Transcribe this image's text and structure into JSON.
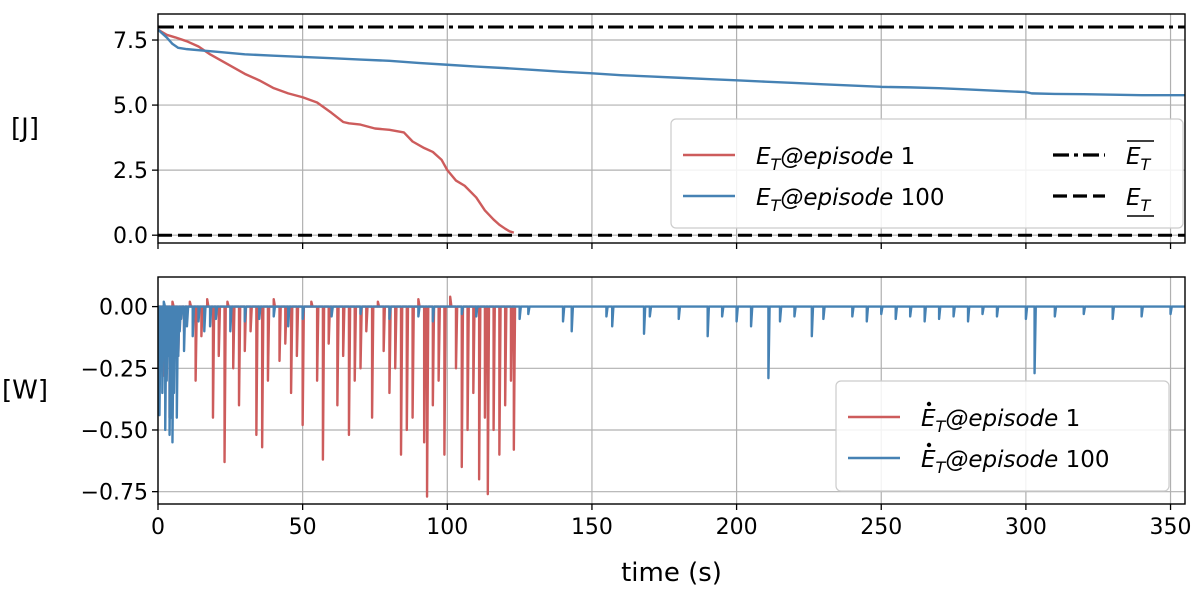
{
  "chart_data": [
    {
      "type": "line",
      "ylabel": "[J]",
      "xlim": [
        0,
        355
      ],
      "ylim": [
        -0.3,
        8.5
      ],
      "x_ticks": [
        0,
        50,
        100,
        150,
        200,
        250,
        300,
        350
      ],
      "y_ticks": [
        0.0,
        2.5,
        5.0,
        7.5
      ],
      "y_tick_labels": [
        "0.0",
        "2.5",
        "5.0",
        "7.5"
      ],
      "grid": true,
      "legend_position": "lower-right",
      "series": [
        {
          "name": "E_T@episode 1",
          "style": "solid",
          "color": "#cd5c5c",
          "x": [
            0,
            3,
            6,
            10,
            14,
            18,
            22,
            26,
            30,
            35,
            40,
            45,
            50,
            55,
            60,
            64,
            66,
            70,
            75,
            80,
            85,
            88,
            92,
            95,
            98,
            100,
            103,
            106,
            110,
            113,
            116,
            118,
            120,
            121.5,
            123
          ],
          "y": [
            7.9,
            7.7,
            7.6,
            7.45,
            7.25,
            6.95,
            6.7,
            6.45,
            6.2,
            5.95,
            5.65,
            5.45,
            5.3,
            5.1,
            4.7,
            4.35,
            4.3,
            4.25,
            4.1,
            4.05,
            3.95,
            3.6,
            3.35,
            3.2,
            2.9,
            2.5,
            2.1,
            1.9,
            1.45,
            0.95,
            0.6,
            0.4,
            0.25,
            0.15,
            0.1
          ]
        },
        {
          "name": "E_T@episode 100",
          "style": "solid",
          "color": "#4682b4",
          "x": [
            0,
            3,
            5,
            7,
            10,
            15,
            20,
            30,
            40,
            50,
            60,
            70,
            80,
            90,
            100,
            110,
            120,
            130,
            140,
            150,
            160,
            170,
            180,
            190,
            200,
            210,
            220,
            230,
            240,
            250,
            260,
            270,
            280,
            290,
            300,
            302,
            310,
            320,
            330,
            340,
            355
          ],
          "y": [
            7.9,
            7.6,
            7.35,
            7.2,
            7.15,
            7.1,
            7.05,
            6.95,
            6.9,
            6.85,
            6.8,
            6.75,
            6.7,
            6.62,
            6.55,
            6.48,
            6.42,
            6.35,
            6.28,
            6.22,
            6.15,
            6.1,
            6.05,
            6.0,
            5.95,
            5.9,
            5.85,
            5.8,
            5.75,
            5.7,
            5.68,
            5.65,
            5.6,
            5.55,
            5.5,
            5.45,
            5.43,
            5.42,
            5.4,
            5.38,
            5.38
          ]
        },
        {
          "name": "upper bound (overline E_T)",
          "style": "dashdot",
          "color": "#000000",
          "x": [
            0,
            355
          ],
          "y": [
            8.0,
            8.0
          ]
        },
        {
          "name": "lower bound (underline E_T)",
          "style": "dashed",
          "color": "#000000",
          "x": [
            0,
            355
          ],
          "y": [
            0.0,
            0.0
          ]
        }
      ],
      "legend_entries": [
        {
          "base": "E",
          "sub": "T",
          "italic_text": "@episode",
          "plain_text": " 1",
          "style": "solid",
          "color": "#cd5c5c"
        },
        {
          "base": "E",
          "sub": "T",
          "italic_text": "@episode",
          "plain_text": " 100",
          "style": "solid",
          "color": "#4682b4"
        },
        {
          "base": "E",
          "sub": "T",
          "italic_text": "",
          "plain_text": "",
          "style": "dashdot",
          "color": "#000000",
          "bar": "over"
        },
        {
          "base": "E",
          "sub": "T",
          "italic_text": "",
          "plain_text": "",
          "style": "dashed",
          "color": "#000000",
          "bar": "under"
        }
      ]
    },
    {
      "type": "line",
      "ylabel": "[W]",
      "xlabel": "time (s)",
      "xlim": [
        0,
        355
      ],
      "ylim": [
        -0.8,
        0.12
      ],
      "x_ticks": [
        0,
        50,
        100,
        150,
        200,
        250,
        300,
        350
      ],
      "x_tick_labels": [
        "0",
        "50",
        "100",
        "150",
        "200",
        "250",
        "300",
        "350"
      ],
      "y_ticks": [
        0.0,
        -0.25,
        -0.5,
        -0.75
      ],
      "y_tick_labels": [
        "0.00",
        "−0.25",
        "−0.50",
        "−0.75"
      ],
      "grid": true,
      "legend_position": "lower-right",
      "series": [
        {
          "name": "Edot_T@episode 1",
          "style": "solid",
          "color": "#cd5c5c",
          "spikes_x": [
            2,
            4,
            5,
            7,
            9,
            11,
            13,
            15,
            17,
            19,
            21,
            23,
            24,
            26,
            28,
            30,
            32,
            34,
            36,
            38,
            40,
            42,
            44,
            46,
            48,
            50,
            53,
            55,
            57,
            59,
            62,
            64,
            66,
            68,
            70,
            72,
            74,
            76,
            78,
            80,
            82,
            84,
            86,
            88,
            90,
            92,
            93,
            95,
            97,
            99,
            101,
            103,
            105,
            107,
            109,
            111,
            113,
            114,
            116,
            118,
            120,
            122,
            123
          ],
          "spikes_y": [
            -0.28,
            -0.45,
            0.02,
            -0.2,
            -0.1,
            0.02,
            -0.3,
            -0.12,
            0.03,
            -0.45,
            -0.2,
            -0.63,
            0.02,
            -0.25,
            -0.4,
            -0.18,
            -0.1,
            -0.52,
            -0.57,
            -0.3,
            0.03,
            -0.22,
            -0.15,
            -0.35,
            -0.2,
            -0.48,
            0.02,
            -0.3,
            -0.62,
            -0.15,
            -0.4,
            -0.2,
            -0.52,
            -0.3,
            -0.25,
            -0.1,
            -0.45,
            0.02,
            -0.18,
            -0.35,
            -0.25,
            -0.6,
            -0.5,
            -0.45,
            0.03,
            -0.55,
            -0.77,
            -0.4,
            -0.3,
            -0.6,
            0.04,
            -0.25,
            -0.65,
            -0.5,
            -0.35,
            -0.7,
            -0.45,
            -0.76,
            -0.5,
            -0.6,
            -0.4,
            -0.3,
            -0.58
          ]
        },
        {
          "name": "Edot_T@episode 100",
          "style": "solid",
          "color": "#4682b4",
          "spikes_x": [
            0.5,
            1,
            1.5,
            2,
            2.5,
            3,
            3.5,
            4,
            4.5,
            5,
            5.5,
            6,
            6.5,
            7,
            7.5,
            8,
            9,
            10,
            12,
            14,
            16,
            18,
            20,
            25,
            30,
            35,
            40,
            45,
            50,
            60,
            70,
            80,
            90,
            95,
            105,
            110,
            125,
            128,
            140,
            143,
            155,
            157,
            168,
            170,
            180,
            190,
            195,
            200,
            205,
            211,
            215,
            220,
            226,
            230,
            240,
            245,
            250,
            255,
            260,
            265,
            270,
            275,
            280,
            285,
            290,
            300,
            303,
            310,
            320,
            330,
            340,
            350
          ],
          "spikes_y": [
            -0.44,
            -0.1,
            -0.35,
            0.02,
            -0.5,
            -0.3,
            -0.2,
            -0.52,
            -0.45,
            -0.55,
            -0.35,
            -0.15,
            -0.45,
            -0.2,
            -0.1,
            -0.05,
            -0.18,
            -0.08,
            -0.12,
            -0.06,
            -0.1,
            -0.08,
            -0.05,
            -0.1,
            -0.06,
            -0.05,
            -0.04,
            -0.08,
            -0.05,
            -0.04,
            -0.03,
            -0.05,
            -0.04,
            -0.06,
            -0.03,
            -0.04,
            -0.05,
            -0.03,
            -0.06,
            -0.1,
            -0.04,
            -0.08,
            -0.11,
            -0.04,
            -0.05,
            -0.12,
            -0.04,
            -0.06,
            -0.08,
            -0.29,
            -0.06,
            -0.04,
            -0.12,
            -0.05,
            -0.04,
            -0.06,
            -0.03,
            -0.05,
            -0.04,
            -0.06,
            -0.05,
            -0.04,
            -0.06,
            -0.03,
            -0.04,
            -0.05,
            -0.27,
            -0.04,
            -0.03,
            -0.05,
            -0.04,
            -0.03
          ]
        }
      ],
      "legend_entries": [
        {
          "base": "E",
          "sub": "T",
          "dot": true,
          "italic_text": "@episode",
          "plain_text": " 1",
          "style": "solid",
          "color": "#cd5c5c"
        },
        {
          "base": "E",
          "sub": "T",
          "dot": true,
          "italic_text": "@episode",
          "plain_text": " 100",
          "style": "solid",
          "color": "#4682b4"
        }
      ]
    }
  ]
}
